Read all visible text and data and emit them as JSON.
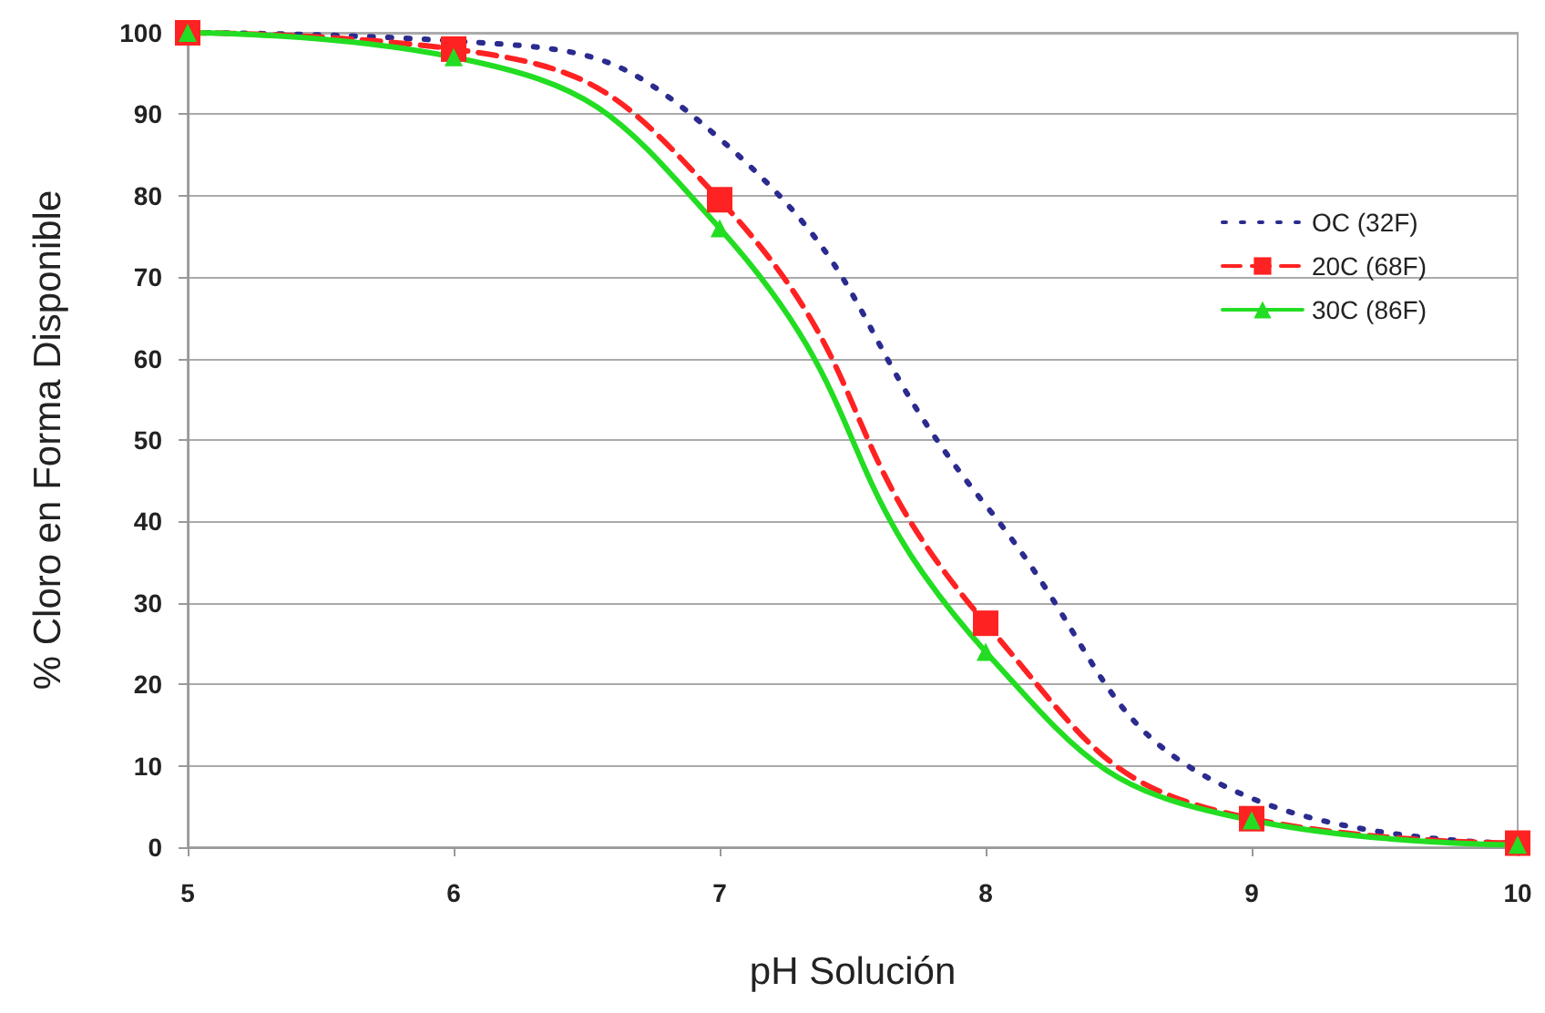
{
  "chart_data": {
    "type": "line",
    "xlabel": "pH Solución",
    "ylabel": "% Cloro en Forma Disponible",
    "xlim": [
      5,
      10
    ],
    "xticks": [
      5,
      6,
      7,
      8,
      9,
      10
    ],
    "ylim": [
      0,
      100
    ],
    "yticks": [
      0,
      10,
      20,
      30,
      40,
      50,
      60,
      70,
      80,
      90,
      100
    ],
    "grid": "y",
    "legend": "top right",
    "series": [
      {
        "name": "OC (32F)",
        "color": "#2b2b8f",
        "marker": "none",
        "line_style": "dotted",
        "x": [
          5,
          6,
          7,
          8,
          9,
          10
        ],
        "values": [
          100,
          99,
          87,
          42,
          6,
          0.5
        ]
      },
      {
        "name": "20C (68F)",
        "color": "#ff2222",
        "marker": "square",
        "line_style": "dashed",
        "x": [
          5,
          6,
          7,
          8,
          9,
          10
        ],
        "values": [
          100,
          98,
          79.5,
          27.5,
          3.5,
          0.5
        ]
      },
      {
        "name": "30C (86F)",
        "color": "#22dd22",
        "marker": "triangle",
        "line_style": "solid",
        "x": [
          5,
          6,
          7,
          8,
          9,
          10
        ],
        "values": [
          100,
          97,
          76,
          24,
          3.3,
          0.3
        ]
      }
    ]
  }
}
